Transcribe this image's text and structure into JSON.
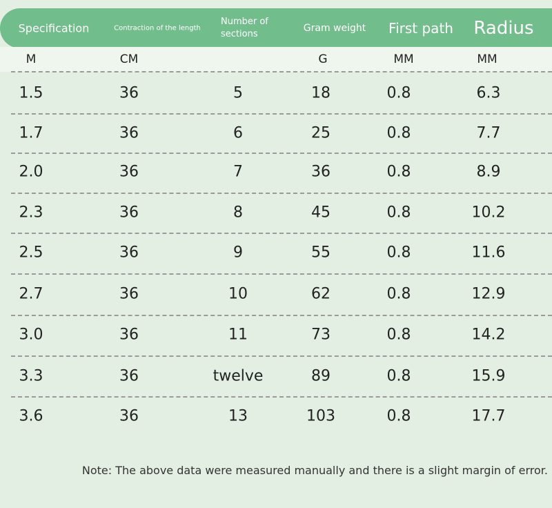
{
  "table": {
    "columns": [
      {
        "name": "Specification",
        "unit": "M"
      },
      {
        "name": "Contraction of the length",
        "unit": "CM"
      },
      {
        "name": "Number of sections"
      },
      {
        "name": "Gram weight",
        "unit": "G"
      },
      {
        "name": "First path",
        "unit": "MM"
      },
      {
        "name": "Radius",
        "unit": "MM"
      }
    ],
    "rows": [
      [
        "1.5",
        "36",
        "5",
        "18",
        "0.8",
        "6.3"
      ],
      [
        "1.7",
        "36",
        "6",
        "25",
        "0.8",
        "7.7"
      ],
      [
        "2.0",
        "36",
        "7",
        "36",
        "0.8",
        "8.9"
      ],
      [
        "2.3",
        "36",
        "8",
        "45",
        "0.8",
        "10.2"
      ],
      [
        "2.5",
        "36",
        "9",
        "55",
        "0.8",
        "11.6"
      ],
      [
        "2.7",
        "36",
        "10",
        "62",
        "0.8",
        "12.9"
      ],
      [
        "3.0",
        "36",
        "11",
        "73",
        "0.8",
        "14.2"
      ],
      [
        "3.3",
        "36",
        "twelve",
        "89",
        "0.8",
        "15.9"
      ],
      [
        "3.6",
        "36",
        "13",
        "103",
        "0.8",
        "17.7"
      ]
    ]
  },
  "note": "Note: The above data were measured manually and there is a slight margin of error."
}
